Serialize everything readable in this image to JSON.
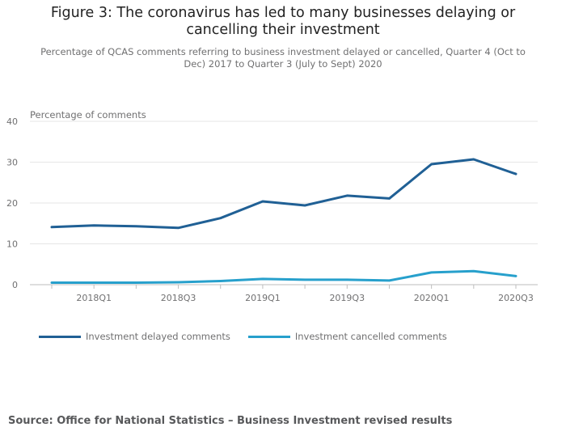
{
  "title": "Figure 3: The coronavirus has led to many businesses delaying or cancelling their investment",
  "subtitle": "Percentage of QCAS comments referring to business investment delayed or cancelled, Quarter 4 (Oct to Dec) 2017 to Quarter 3 (July to Sept) 2020",
  "source": "Source: Office for National Statistics – Business Investment revised results",
  "colors": {
    "delayed": "#206095",
    "cancelled": "#27a0cc",
    "grid": "#e6e6e6",
    "axis": "#bebebe"
  },
  "chart_data": {
    "type": "line",
    "title": "Figure 3: The coronavirus has led to many businesses delaying or cancelling their investment",
    "xlabel": "",
    "ylabel": "Percentage of comments",
    "ylim": [
      0,
      40
    ],
    "yticks": [
      0,
      10,
      20,
      30,
      40
    ],
    "x": [
      "2017Q4",
      "2018Q1",
      "2018Q2",
      "2018Q3",
      "2018Q4",
      "2019Q1",
      "2019Q2",
      "2019Q3",
      "2019Q4",
      "2020Q1",
      "2020Q2",
      "2020Q3"
    ],
    "xtick_labels": [
      "",
      "2018Q1",
      "",
      "2018Q3",
      "",
      "2019Q1",
      "",
      "2019Q3",
      "",
      "2020Q1",
      "",
      "2020Q3"
    ],
    "series": [
      {
        "name": "Investment delayed comments",
        "color": "#206095",
        "values": [
          14.1,
          14.5,
          14.3,
          13.9,
          16.3,
          20.4,
          19.4,
          21.8,
          21.1,
          29.5,
          30.7,
          27.1
        ]
      },
      {
        "name": "Investment cancelled comments",
        "color": "#27a0cc",
        "values": [
          0.5,
          0.5,
          0.5,
          0.6,
          0.9,
          1.4,
          1.2,
          1.2,
          1.0,
          3.0,
          3.3,
          2.1
        ]
      }
    ],
    "legend_position": "bottom-left"
  }
}
